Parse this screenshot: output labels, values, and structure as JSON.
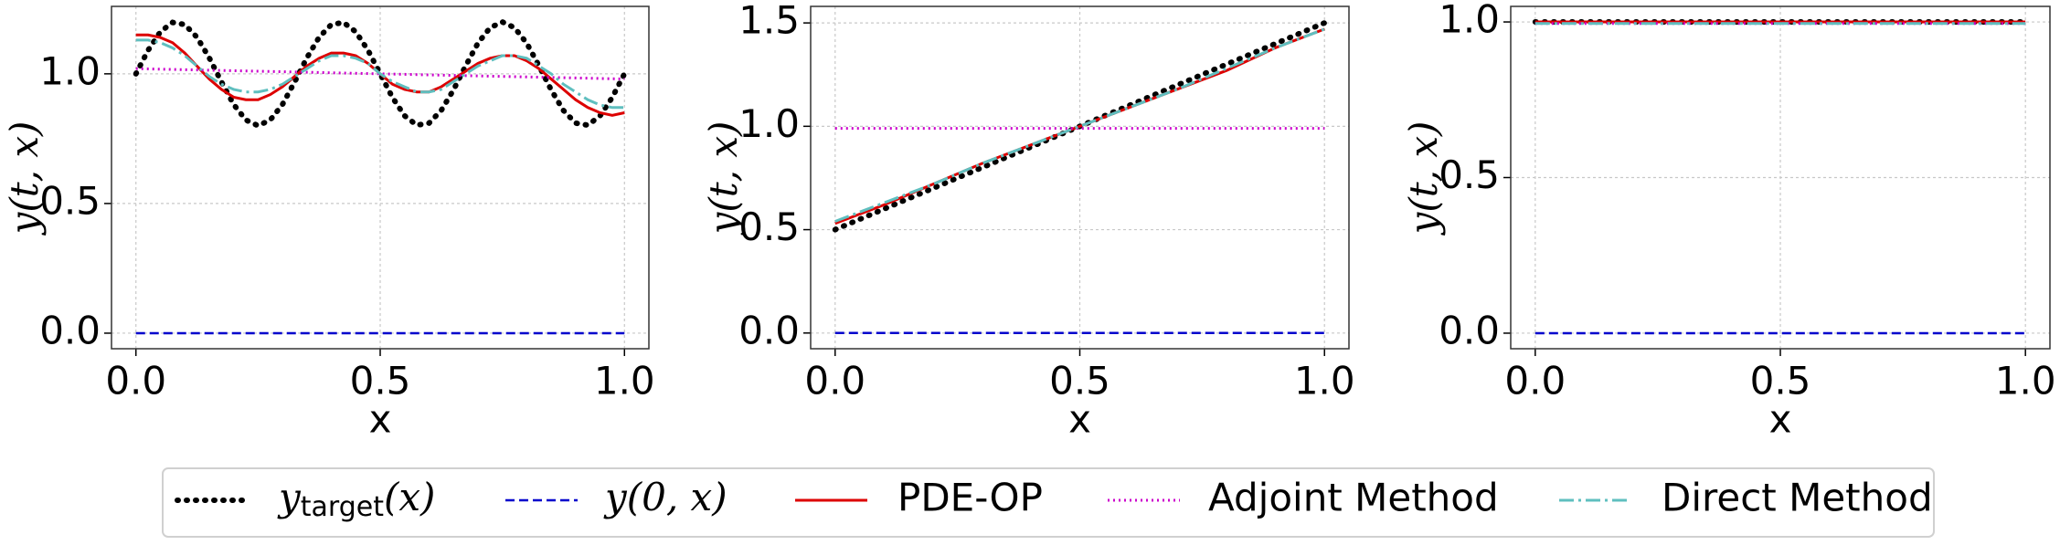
{
  "chart_data": [
    {
      "type": "line",
      "xlabel": "x",
      "ylabel": "y(t, x)",
      "x": [
        0,
        0.025,
        0.05,
        0.075,
        0.1,
        0.125,
        0.15,
        0.175,
        0.2,
        0.225,
        0.25,
        0.275,
        0.3,
        0.325,
        0.35,
        0.375,
        0.4,
        0.425,
        0.45,
        0.475,
        0.5,
        0.525,
        0.55,
        0.575,
        0.6,
        0.625,
        0.65,
        0.675,
        0.7,
        0.725,
        0.75,
        0.775,
        0.8,
        0.825,
        0.85,
        0.875,
        0.9,
        0.925,
        0.95,
        0.975,
        1.0
      ],
      "series": [
        {
          "name": "y_target(x)",
          "color": "#000000",
          "dash": "dotted",
          "values": [
            1.0,
            1.091,
            1.162,
            1.198,
            1.19,
            1.141,
            1.062,
            0.969,
            0.882,
            0.822,
            0.8,
            0.822,
            0.882,
            0.969,
            1.062,
            1.141,
            1.19,
            1.198,
            1.162,
            1.091,
            1.0,
            0.909,
            0.838,
            0.802,
            0.81,
            0.859,
            0.938,
            1.031,
            1.118,
            1.178,
            1.2,
            1.178,
            1.118,
            1.031,
            0.938,
            0.859,
            0.81,
            0.802,
            0.838,
            0.909,
            1.0
          ]
        },
        {
          "name": "y(0, x)",
          "color": "#0000cc",
          "dash": "dashed",
          "values": [
            0,
            0,
            0,
            0,
            0,
            0,
            0,
            0,
            0,
            0,
            0,
            0,
            0,
            0,
            0,
            0,
            0,
            0,
            0,
            0,
            0,
            0,
            0,
            0,
            0,
            0,
            0,
            0,
            0,
            0,
            0,
            0,
            0,
            0,
            0,
            0,
            0,
            0,
            0,
            0,
            0
          ]
        },
        {
          "name": "PDE-OP",
          "color": "#dd0000",
          "dash": "solid",
          "values": [
            1.15,
            1.15,
            1.14,
            1.12,
            1.08,
            1.03,
            0.98,
            0.94,
            0.91,
            0.9,
            0.9,
            0.92,
            0.95,
            0.99,
            1.03,
            1.06,
            1.08,
            1.08,
            1.07,
            1.04,
            1.0,
            0.96,
            0.94,
            0.93,
            0.93,
            0.95,
            0.98,
            1.01,
            1.04,
            1.06,
            1.07,
            1.07,
            1.05,
            1.02,
            0.98,
            0.94,
            0.9,
            0.87,
            0.85,
            0.84,
            0.85
          ]
        },
        {
          "name": "Adjoint Method",
          "color": "#cc00cc",
          "dash": "dotted-thin",
          "values": [
            1.02,
            1.019,
            1.018,
            1.017,
            1.016,
            1.015,
            1.014,
            1.013,
            1.012,
            1.011,
            1.01,
            1.009,
            1.008,
            1.007,
            1.006,
            1.005,
            1.004,
            1.003,
            1.002,
            1.001,
            1.0,
            0.999,
            0.998,
            0.997,
            0.996,
            0.995,
            0.994,
            0.993,
            0.992,
            0.991,
            0.99,
            0.989,
            0.988,
            0.987,
            0.986,
            0.985,
            0.984,
            0.983,
            0.982,
            0.981,
            0.98
          ]
        },
        {
          "name": "Direct Method",
          "color": "#5fbfbf",
          "dash": "dashdot",
          "values": [
            1.13,
            1.13,
            1.12,
            1.1,
            1.07,
            1.03,
            0.99,
            0.96,
            0.94,
            0.93,
            0.93,
            0.94,
            0.96,
            0.99,
            1.02,
            1.05,
            1.07,
            1.07,
            1.06,
            1.04,
            1.0,
            0.97,
            0.95,
            0.93,
            0.93,
            0.94,
            0.97,
            1.0,
            1.03,
            1.05,
            1.07,
            1.07,
            1.06,
            1.03,
            1.0,
            0.96,
            0.93,
            0.9,
            0.88,
            0.87,
            0.87
          ]
        }
      ],
      "xlim": [
        -0.05,
        1.05
      ],
      "ylim": [
        -0.06,
        1.26
      ],
      "xticks": [
        {
          "value": 0,
          "label": "0.0"
        },
        0.5,
        {
          "value": 1,
          "label": "1.0"
        }
      ],
      "yticks": [
        {
          "value": 0,
          "label": "0.0"
        },
        0.5,
        {
          "value": 1,
          "label": "1.0"
        }
      ],
      "grid": true
    },
    {
      "type": "line",
      "xlabel": "x",
      "ylabel": "y(t, x)",
      "x": [
        0,
        0.1,
        0.2,
        0.3,
        0.4,
        0.5,
        0.6,
        0.7,
        0.8,
        0.9,
        1.0
      ],
      "series": [
        {
          "name": "y_target(x)",
          "color": "#000000",
          "dash": "dotted",
          "values": [
            0.5,
            0.6,
            0.7,
            0.8,
            0.9,
            1.0,
            1.1,
            1.2,
            1.3,
            1.4,
            1.5
          ]
        },
        {
          "name": "y(0, x)",
          "color": "#0000cc",
          "dash": "dashed",
          "values": [
            0,
            0,
            0,
            0,
            0,
            0,
            0,
            0,
            0,
            0,
            0
          ]
        },
        {
          "name": "PDE-OP",
          "color": "#dd0000",
          "dash": "solid",
          "values": [
            0.53,
            0.62,
            0.72,
            0.82,
            0.91,
            1.0,
            1.09,
            1.18,
            1.27,
            1.38,
            1.47
          ]
        },
        {
          "name": "Adjoint Method",
          "color": "#cc00cc",
          "dash": "dotted-thin",
          "values": [
            0.99,
            0.99,
            0.99,
            0.99,
            0.99,
            0.99,
            0.99,
            0.99,
            0.99,
            0.99,
            0.99
          ]
        },
        {
          "name": "Direct Method",
          "color": "#5fbfbf",
          "dash": "dashdot",
          "values": [
            0.54,
            0.63,
            0.72,
            0.82,
            0.91,
            1.0,
            1.09,
            1.18,
            1.28,
            1.38,
            1.47
          ]
        }
      ],
      "xlim": [
        -0.05,
        1.05
      ],
      "ylim": [
        -0.076,
        1.58
      ],
      "xticks": [
        {
          "value": 0,
          "label": "0.0"
        },
        0.5,
        {
          "value": 1,
          "label": "1.0"
        }
      ],
      "yticks": [
        {
          "value": 0,
          "label": "0.0"
        },
        0.5,
        {
          "value": 1,
          "label": "1.0"
        },
        1.5
      ],
      "grid": true
    },
    {
      "type": "line",
      "xlabel": "x",
      "ylabel": "y(t, x)",
      "x": [
        0,
        1.0
      ],
      "series": [
        {
          "name": "y_target(x)",
          "color": "#000000",
          "dash": "dotted",
          "values": [
            1.0,
            1.0
          ]
        },
        {
          "name": "y(0, x)",
          "color": "#0000cc",
          "dash": "dashed",
          "values": [
            0,
            0
          ]
        },
        {
          "name": "PDE-OP",
          "color": "#dd0000",
          "dash": "solid",
          "values": [
            1.0,
            1.0
          ]
        },
        {
          "name": "Adjoint Method",
          "color": "#cc00cc",
          "dash": "dotted-thin",
          "values": [
            0.995,
            0.995
          ]
        },
        {
          "name": "Direct Method",
          "color": "#5fbfbf",
          "dash": "dashdot",
          "values": [
            0.995,
            0.995
          ]
        }
      ],
      "xlim": [
        -0.05,
        1.05
      ],
      "ylim": [
        -0.05,
        1.05
      ],
      "xticks": [
        {
          "value": 0,
          "label": "0.0"
        },
        0.5,
        {
          "value": 1,
          "label": "1.0"
        }
      ],
      "yticks": [
        {
          "value": 0,
          "label": "0.0"
        },
        0.5,
        {
          "value": 1,
          "label": "1.0"
        }
      ],
      "grid": true
    }
  ]
}
